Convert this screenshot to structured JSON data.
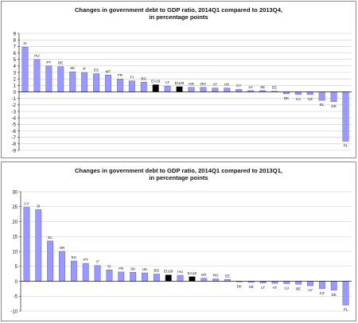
{
  "chart_data": [
    {
      "type": "bar",
      "title_line1": "Changes in government debt to GDP ratio, 2014Q1 compared to 2013Q4,",
      "title_line2": "in percentage points",
      "categories": [
        "SI",
        "HU",
        "PT",
        "BE",
        "SK",
        "IT",
        "ES",
        "MT",
        "FR",
        "FI",
        "BG",
        "EA18",
        "LT",
        "EU28",
        "HR",
        "RO",
        "AT",
        "UK",
        "CY",
        "LV",
        "SE",
        "EE",
        "DK",
        "LU",
        "CZ",
        "EL",
        "DE",
        "PL"
      ],
      "values": [
        6.9,
        5.0,
        4.0,
        3.9,
        3.1,
        3.0,
        2.8,
        2.6,
        2.0,
        1.7,
        1.5,
        1.1,
        0.9,
        0.8,
        0.7,
        0.7,
        0.6,
        0.6,
        0.4,
        0.2,
        0.2,
        0.1,
        -0.3,
        -0.4,
        -0.4,
        -1.3,
        -1.5,
        -7.6
      ],
      "highlight": [
        "EA18",
        "EU28"
      ],
      "ylim": [
        -9,
        9
      ],
      "yticks": [
        9,
        8,
        7,
        6,
        5,
        4,
        3,
        2,
        1,
        0,
        -1,
        -2,
        -3,
        -4,
        -5,
        -6,
        -7,
        -8,
        -9
      ],
      "grid": true
    },
    {
      "type": "bar",
      "title_line1": "Changes in government debt to GDP ratio, 2014Q1 compared to 2013Q1,",
      "title_line2": "in percentage points",
      "categories": [
        "CY",
        "SI",
        "EL",
        "HR",
        "ES",
        "PT",
        "IT",
        "FI",
        "FR",
        "SK",
        "UK",
        "BG",
        "EU28",
        "HU",
        "EA18",
        "MT",
        "RO",
        "EE",
        "DK",
        "SE",
        "LT",
        "AT",
        "LU",
        "BE",
        "LV",
        "CZ",
        "DE",
        "PL"
      ],
      "values": [
        24.8,
        24.0,
        13.5,
        10.0,
        6.8,
        6.0,
        5.3,
        3.8,
        3.1,
        3.0,
        2.8,
        2.4,
        2.1,
        2.0,
        1.5,
        1.0,
        0.8,
        0.6,
        -0.2,
        -0.4,
        -0.6,
        -0.7,
        -0.8,
        -1.0,
        -1.5,
        -2.5,
        -3.0,
        -8.0
      ],
      "highlight": [
        "EU28",
        "EA18"
      ],
      "ylim": [
        -10,
        30
      ],
      "yticks": [
        30,
        25,
        20,
        15,
        10,
        5,
        0,
        -5,
        -10
      ],
      "grid": true
    }
  ],
  "colors": {
    "bar": "#9999ff",
    "highlight": "#000000",
    "bar_edge": "#4b4bb0",
    "grid": "#c8c8c8",
    "axis": "#222222",
    "text": "#111111"
  }
}
